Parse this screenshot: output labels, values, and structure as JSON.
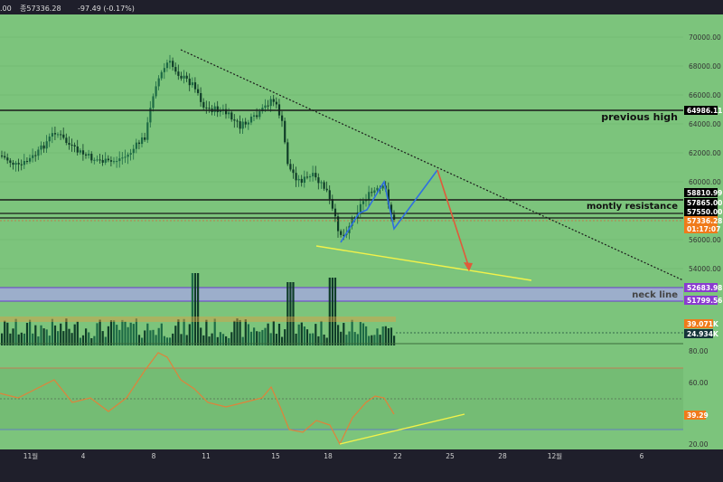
{
  "header": {
    "ohlc_text": ".00",
    "close_text": "종57336.28",
    "change_text": "-97.49 (-0.17%)"
  },
  "colors": {
    "background": "#7cc47c",
    "frame": "#1f1f2b",
    "candle_up": "#1a5a3a",
    "candle_down": "#0f3d28",
    "resistance_line": "#1a1a1a",
    "pattern_blue": "#2f6fe0",
    "projection_red": "#e05a3a",
    "support_yellow": "#f2f24a",
    "neck_band": "#a7a7e6",
    "rsi_orange": "#e0823a",
    "rsi_blue_line": "#5a6ad8",
    "rsi_red_line": "#d86a4a",
    "badge_black": "#000000",
    "badge_orange": "#f07a1a",
    "badge_purple": "#8a3ad0",
    "badge_green_dark": "#16343a"
  },
  "price_axis": {
    "ticks": [
      "70000.00",
      "68000.00",
      "66000.00",
      "64000.00",
      "62000.00",
      "60000.00",
      "56000.00",
      "54000.00"
    ]
  },
  "annotations": {
    "previous_high": "previous high",
    "montly_resistance": "montly resistance",
    "neck_line": "neck line"
  },
  "badges": {
    "previous_high_price": "64986.11",
    "resistance_upper": "58810.99",
    "resistance_mid": "57865.00",
    "resistance_lower": "57550.00",
    "last_price": "57336.28",
    "countdown": "01:17:07",
    "neck_upper": "52683.98",
    "neck_lower": "51799.56",
    "volume_ma": "39.071K",
    "volume_last": "24.934K",
    "rsi_value": "39.29"
  },
  "rsi_axis": {
    "ticks": [
      "80.00",
      "60.00",
      "20.00"
    ]
  },
  "time_axis": {
    "ticks": [
      "11월",
      "4",
      "8",
      "11",
      "15",
      "18",
      "22",
      "25",
      "28",
      "12월",
      "6"
    ]
  },
  "chart_data": {
    "type": "candlestick",
    "title": "",
    "xlabel": "",
    "ylabel": "",
    "ylim": [
      53000,
      71000
    ],
    "horizontal_levels": [
      {
        "name": "previous high",
        "value": 64986.11
      },
      {
        "name": "montly resistance",
        "value": 58810.99
      },
      {
        "value": 57865.0
      },
      {
        "value": 57550.0
      },
      {
        "name": "neck line",
        "value": 52683.98
      },
      {
        "value": 51799.56
      }
    ],
    "last_price": 57336.28,
    "rsi_last": 39.29,
    "volume_ma": "39.071K",
    "volume_last": "24.934K"
  }
}
